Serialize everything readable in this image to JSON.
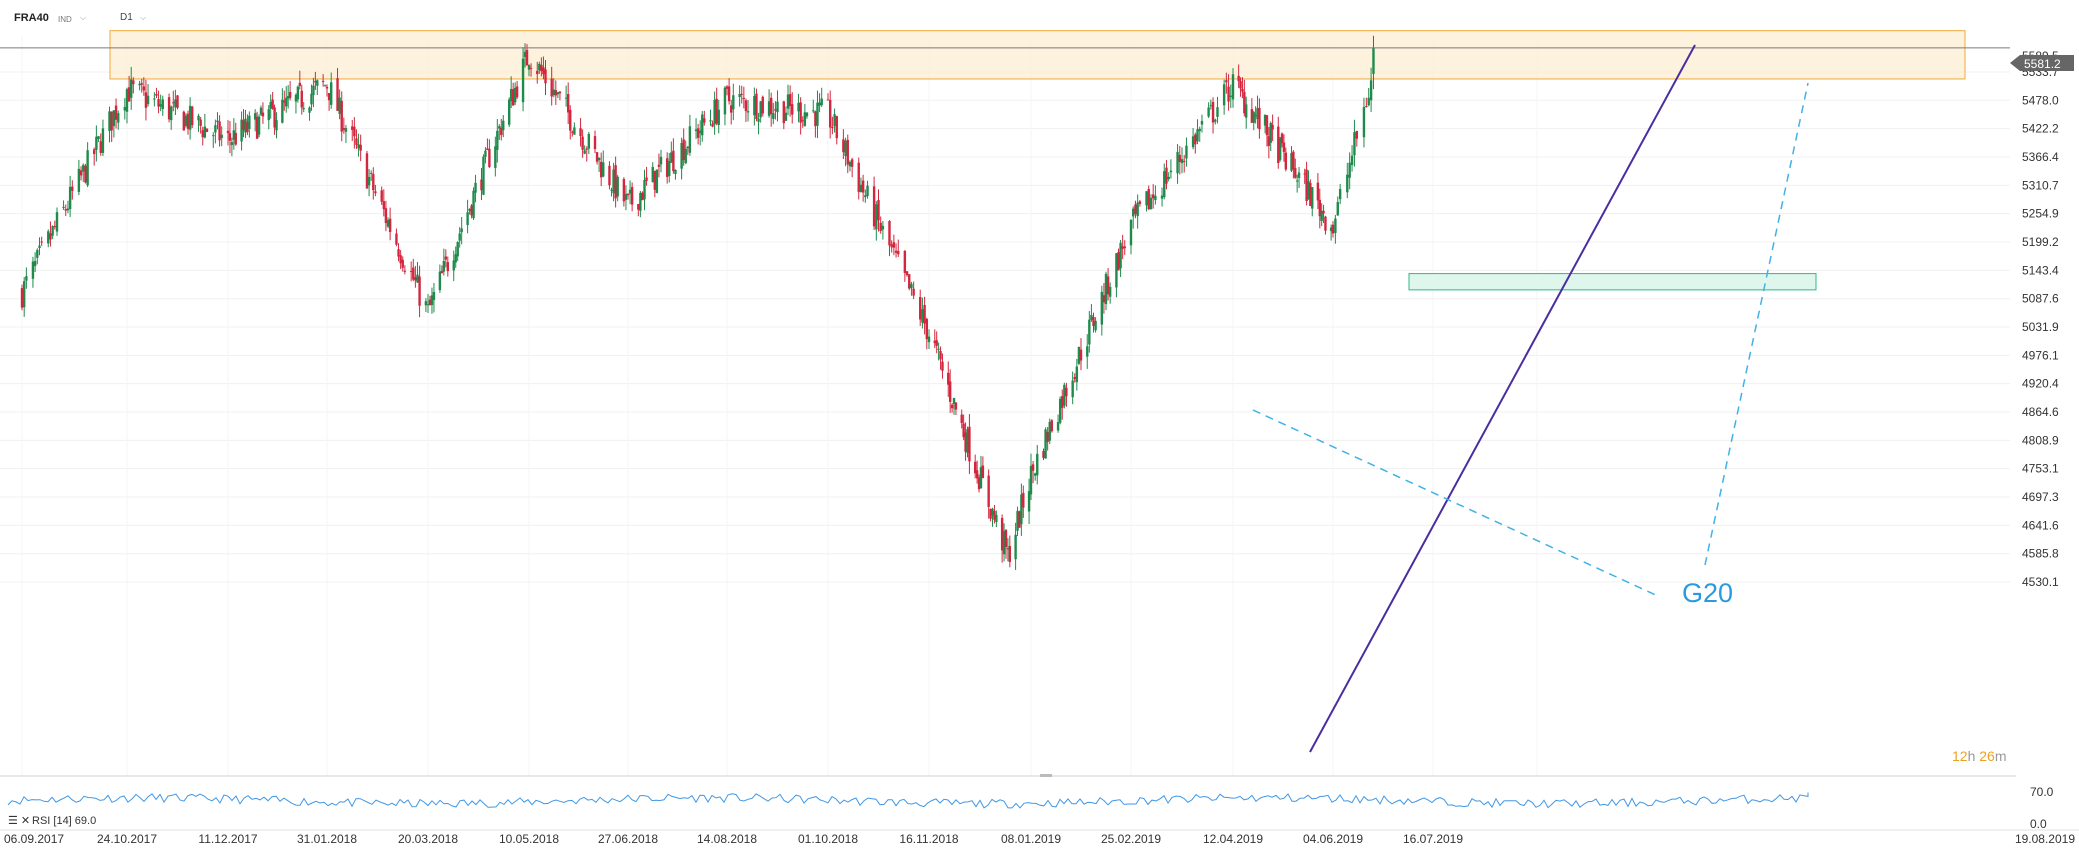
{
  "header": {
    "symbol": "FRA40",
    "instrument_type": "IND",
    "timeframe": "D1"
  },
  "price": {
    "last_label": "5581.2",
    "hidden_label": "5589.5"
  },
  "timer": {
    "hours": "12",
    "h": "h",
    "minutes": "26",
    "m": "m"
  },
  "annotation": {
    "g20": "G20"
  },
  "rsi": {
    "label": "RSI [14] 69.0",
    "top": "70.0",
    "bottom": "0.0"
  },
  "colors": {
    "up": "#1f8a4c",
    "down": "#d3263e",
    "resistance_fill": "#fdefd4",
    "resistance_border": "#f2a93b",
    "support_fill": "#d9f4ea",
    "support_border": "#2fb88a",
    "trendline": "#4a2ea0",
    "dashed": "#3fb2e6",
    "rsi_line": "#3f97e6",
    "badge": "#666666"
  },
  "chart_data": {
    "type": "candlestick",
    "symbol": "FRA40",
    "timeframe": "D1",
    "y_ticks": [
      5533.7,
      5478.0,
      5422.2,
      5366.4,
      5310.7,
      5254.9,
      5199.2,
      5143.4,
      5087.6,
      5031.9,
      4976.1,
      4920.4,
      4864.6,
      4808.9,
      4753.1,
      4697.3,
      4641.6,
      4585.8,
      4530.1
    ],
    "ylim": [
      4525,
      5600
    ],
    "x_ticks": [
      "06.09.2017",
      "24.10.2017",
      "11.12.2017",
      "31.01.2018",
      "20.03.2018",
      "10.05.2018",
      "27.06.2018",
      "14.08.2018",
      "01.10.2018",
      "16.11.2018",
      "08.01.2019",
      "25.02.2019",
      "12.04.2019",
      "04.06.2019",
      "16.07.2019",
      "19.08.2019"
    ],
    "key_closes": [
      {
        "date": "06.09.2017",
        "close": 5100
      },
      {
        "date": "24.10.2017",
        "close": 5500
      },
      {
        "date": "11.12.2017",
        "close": 5400
      },
      {
        "date": "31.01.2018",
        "close": 5510
      },
      {
        "date": "20.03.2018",
        "close": 5060
      },
      {
        "date": "10.05.2018",
        "close": 5570
      },
      {
        "date": "27.06.2018",
        "close": 5270
      },
      {
        "date": "14.08.2018",
        "close": 5480
      },
      {
        "date": "01.10.2018",
        "close": 5450
      },
      {
        "date": "16.11.2018",
        "close": 5020
      },
      {
        "date": "27.12.2018",
        "close": 4580
      },
      {
        "date": "08.01.2019",
        "close": 4740
      },
      {
        "date": "25.02.2019",
        "close": 5230
      },
      {
        "date": "12.04.2019",
        "close": 5510
      },
      {
        "date": "04.06.2019",
        "close": 5230
      },
      {
        "date": "21.06.2019",
        "close": 5530
      }
    ],
    "last_price": 5581.2,
    "zones": [
      {
        "type": "resistance",
        "from": 5520,
        "to": 5615
      },
      {
        "type": "support",
        "from": 5105,
        "to": 5137
      }
    ],
    "rsi": {
      "period": 14,
      "last": 69.0,
      "levels": [
        70.0,
        0.0
      ]
    },
    "annotations": [
      "G20"
    ]
  }
}
